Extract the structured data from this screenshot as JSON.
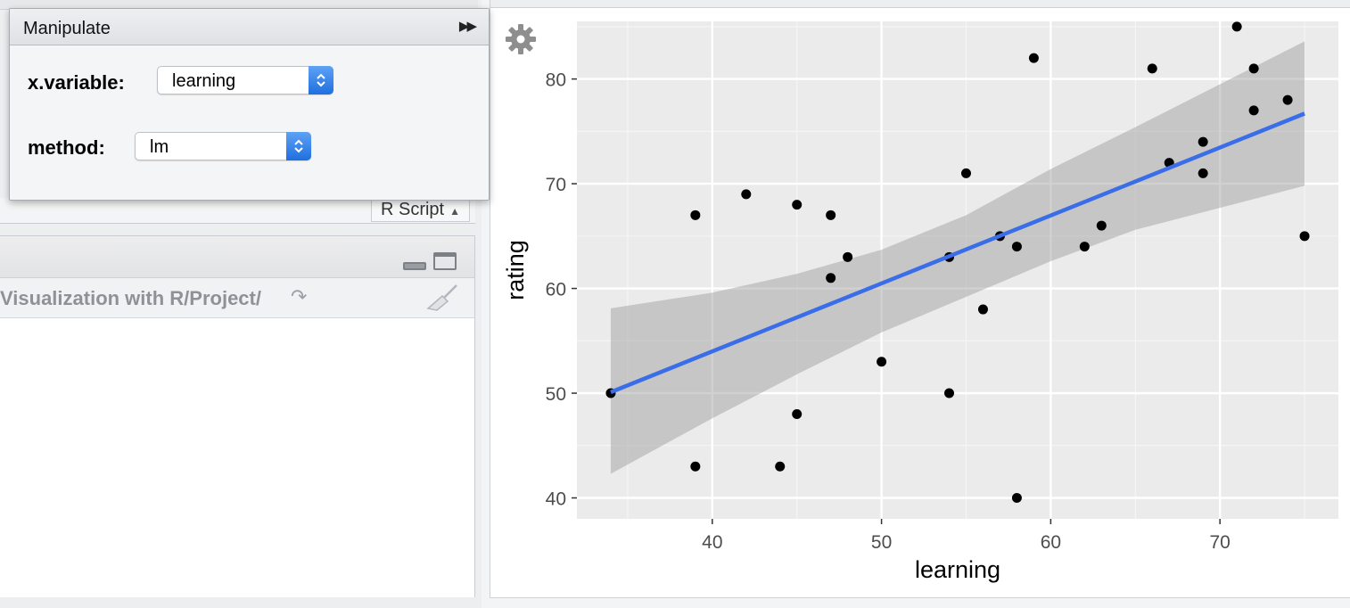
{
  "manipulate": {
    "title": "Manipulate",
    "controls": [
      {
        "label": "x.variable:",
        "value": "learning"
      },
      {
        "label": "method:",
        "value": "lm"
      }
    ]
  },
  "source": {
    "filetype": "R Script"
  },
  "files": {
    "path": "Visualization with R/Project/"
  },
  "icons": {
    "collapse": "double-chevron-right-icon",
    "gear": "gear-icon",
    "broom": "broom-icon",
    "go": "redo-arrow-icon"
  },
  "colors": {
    "fit_line": "#3a6de8",
    "panel": "#ebebeb",
    "ribbon": "#c6c6c6",
    "accent": "#1f6fe0"
  },
  "chart_data": {
    "type": "scatter",
    "xlabel": "learning",
    "ylabel": "rating",
    "xlim": [
      32,
      77
    ],
    "ylim": [
      38,
      85.5
    ],
    "x_ticks": [
      40,
      50,
      60,
      70
    ],
    "y_ticks": [
      40,
      50,
      60,
      70,
      80
    ],
    "grid": true,
    "points": [
      {
        "x": 34,
        "y": 50
      },
      {
        "x": 39,
        "y": 67
      },
      {
        "x": 39,
        "y": 43
      },
      {
        "x": 42,
        "y": 69
      },
      {
        "x": 44,
        "y": 43
      },
      {
        "x": 45,
        "y": 68
      },
      {
        "x": 45,
        "y": 48
      },
      {
        "x": 47,
        "y": 67
      },
      {
        "x": 47,
        "y": 61
      },
      {
        "x": 48,
        "y": 63
      },
      {
        "x": 50,
        "y": 53
      },
      {
        "x": 54,
        "y": 63
      },
      {
        "x": 54,
        "y": 50
      },
      {
        "x": 55,
        "y": 71
      },
      {
        "x": 56,
        "y": 58
      },
      {
        "x": 57,
        "y": 65
      },
      {
        "x": 58,
        "y": 64
      },
      {
        "x": 58,
        "y": 40
      },
      {
        "x": 59,
        "y": 82
      },
      {
        "x": 62,
        "y": 64
      },
      {
        "x": 63,
        "y": 66
      },
      {
        "x": 66,
        "y": 81
      },
      {
        "x": 67,
        "y": 72
      },
      {
        "x": 69,
        "y": 74
      },
      {
        "x": 69,
        "y": 71
      },
      {
        "x": 71,
        "y": 85
      },
      {
        "x": 72,
        "y": 81
      },
      {
        "x": 72,
        "y": 77
      },
      {
        "x": 74,
        "y": 78
      },
      {
        "x": 75,
        "y": 65
      }
    ],
    "fit": {
      "method": "lm",
      "x": [
        34,
        75
      ],
      "y": [
        50.1,
        76.7
      ]
    },
    "ribbon": {
      "x": [
        34,
        40,
        45,
        50,
        55,
        60,
        65,
        70,
        75
      ],
      "upper": [
        58.1,
        59.6,
        61.4,
        63.7,
        67.0,
        71.4,
        75.4,
        79.5,
        83.6
      ],
      "lower": [
        42.3,
        47.6,
        51.8,
        55.8,
        59.2,
        62.6,
        65.6,
        67.7,
        69.8
      ]
    }
  }
}
